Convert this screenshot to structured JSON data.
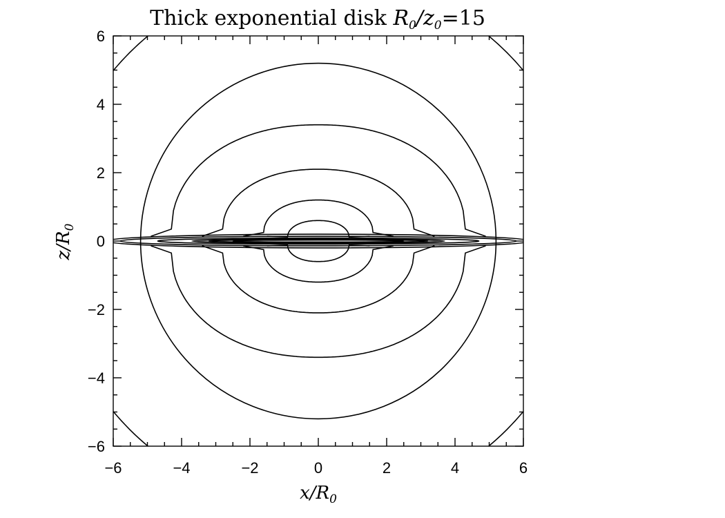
{
  "chart_data": {
    "type": "contour",
    "title": {
      "prefix": "Thick exponential disk ",
      "r": "R",
      "r_sub": "0",
      "slash": "/",
      "z": "z",
      "z_sub": "0",
      "rest": "=15"
    },
    "xlabel": {
      "main": "x/R",
      "sub": "0"
    },
    "ylabel": {
      "main": "z/R",
      "sub": "0"
    },
    "xlim": [
      -6,
      6
    ],
    "ylim": [
      -6,
      6
    ],
    "xticks": [
      -6,
      -4,
      -2,
      0,
      2,
      4,
      6
    ],
    "yticks": [
      -6,
      -4,
      -2,
      0,
      2,
      4,
      6
    ],
    "xtick_labels": [
      "−6",
      "−4",
      "−2",
      "0",
      "2",
      "4",
      "6"
    ],
    "ytick_labels": [
      "−6",
      "−4",
      "−2",
      "0",
      "2",
      "4",
      "6"
    ],
    "grid": false,
    "outer_circles": [
      {
        "radius": 7.8
      },
      {
        "radius": 5.2
      }
    ],
    "halo_contours": [
      {
        "z_top": 3.4,
        "x_edge": 4.3,
        "z_edge": 0.35
      },
      {
        "z_top": 2.1,
        "x_edge": 2.8,
        "z_edge": 0.35
      },
      {
        "z_top": 1.2,
        "x_edge": 1.6,
        "z_edge": 0.25
      },
      {
        "z_top": 0.6,
        "x_edge": 0.9,
        "z_edge": 0.12
      }
    ],
    "disk_contours": [
      {
        "a": 6.2,
        "b": 0.2
      },
      {
        "a": 5.8,
        "b": 0.14
      },
      {
        "a": 4.7,
        "b": 0.09
      },
      {
        "a": 3.7,
        "b": 0.06
      },
      {
        "a": 3.2,
        "b": 0.04
      },
      {
        "a": 2.5,
        "b": 0.03
      }
    ]
  }
}
